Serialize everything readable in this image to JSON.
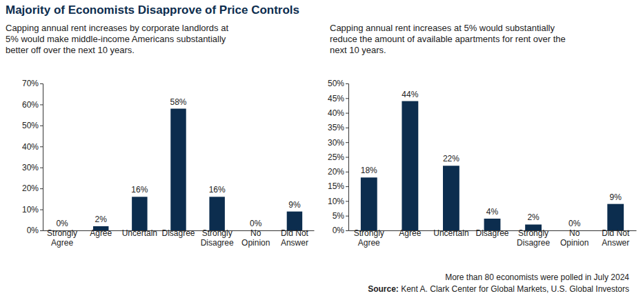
{
  "title": "Majority of Economists Disapprove of Price Controls",
  "note": "More than 80 economists were polled in July 2024",
  "source": "Source: Kent A. Clark Center for Global Markets, U.S. Global Investors",
  "chart_data": [
    {
      "type": "bar",
      "title": "Capping annual rent increases by corporate landlords at 5% would make middle-income Americans substantially better off over the next 10 years.",
      "categories": [
        "Strongly Agree",
        "Agree",
        "Uncertain",
        "Disagree",
        "Strongly Disagree",
        "No Opinion",
        "Did Not Answer"
      ],
      "values": [
        0,
        2,
        16,
        58,
        16,
        0,
        9
      ],
      "value_labels": [
        "0%",
        "2%",
        "16%",
        "58%",
        "16%",
        "0%",
        "9%"
      ],
      "color": "#0c2d4e",
      "data_labels": true,
      "ylim": [
        0,
        70
      ],
      "yticks": [
        {
          "value": 0,
          "label": "0%"
        },
        {
          "value": 10,
          "label": "10%"
        },
        {
          "value": 20,
          "label": "20%"
        },
        {
          "value": 30,
          "label": "30%"
        },
        {
          "value": 40,
          "label": "40%"
        },
        {
          "value": 50,
          "label": "50%"
        },
        {
          "value": 60,
          "label": "60%"
        },
        {
          "value": 70,
          "label": "70%"
        }
      ]
    },
    {
      "type": "bar",
      "title": "Capping annual rent increases at 5% would substantially reduce the amount of available apartments for rent over the next 10 years.",
      "categories": [
        "Strongly Agree",
        "Agree",
        "Uncertain",
        "Disagree",
        "Strongly Disagree",
        "No Opinion",
        "Did Not Answer"
      ],
      "values": [
        18,
        44,
        22,
        4,
        2,
        0,
        9
      ],
      "value_labels": [
        "18%",
        "44%",
        "22%",
        "4%",
        "2%",
        "0%",
        "9%"
      ],
      "color": "#0c2d4e",
      "data_labels": true,
      "ylim": [
        0,
        50
      ],
      "yticks": [
        {
          "value": 0,
          "label": "0%"
        },
        {
          "value": 5,
          "label": "5%"
        },
        {
          "value": 10,
          "label": "10%"
        },
        {
          "value": 15,
          "label": "15%"
        },
        {
          "value": 20,
          "label": "20%"
        },
        {
          "value": 25,
          "label": "25%"
        },
        {
          "value": 30,
          "label": "30%"
        },
        {
          "value": 35,
          "label": "35%"
        },
        {
          "value": 40,
          "label": "40%"
        },
        {
          "value": 45,
          "label": "45%"
        },
        {
          "value": 50,
          "label": "50%"
        }
      ]
    }
  ]
}
